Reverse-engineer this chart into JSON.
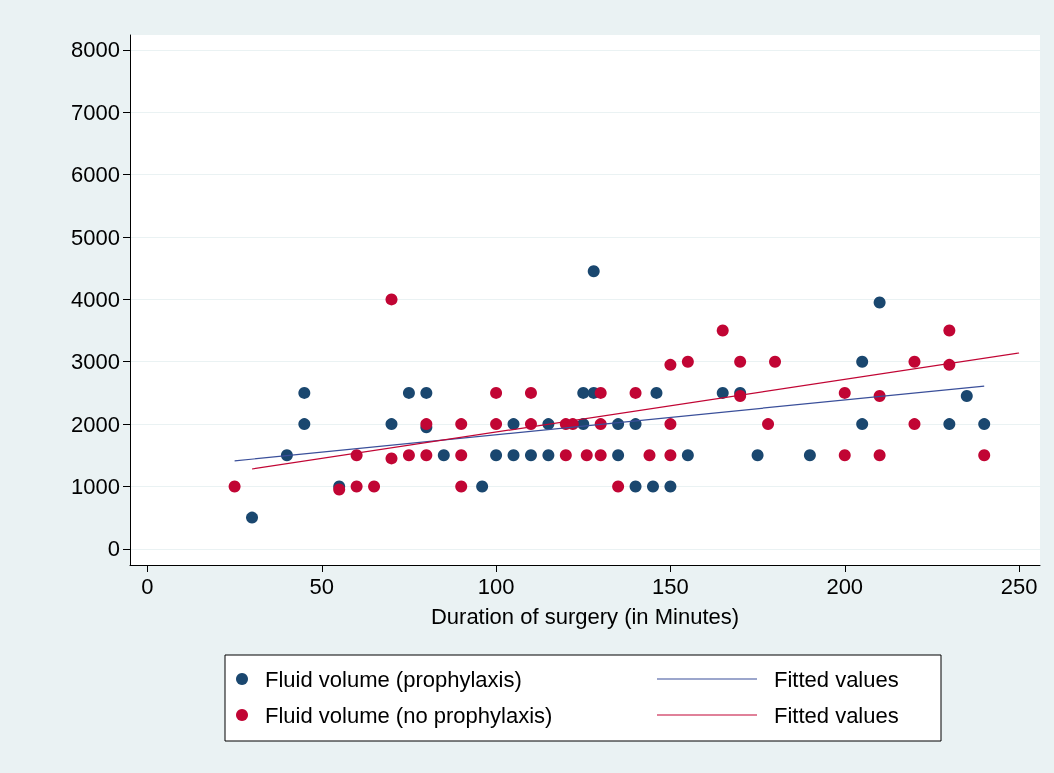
{
  "chart_data": {
    "type": "scatter",
    "xlabel": "Duration of surgery (in Minutes)",
    "xlim": [
      -5,
      256
    ],
    "xticks": [
      0,
      50,
      100,
      150,
      200,
      250
    ],
    "ylim": [
      -260,
      8240
    ],
    "yticks": [
      0,
      1000,
      2000,
      3000,
      4000,
      5000,
      6000,
      7000,
      8000
    ],
    "grid": "y",
    "legend": "bottom",
    "series": [
      {
        "name": "Fluid volume (prophylaxis)",
        "color": "#1a476f",
        "marker": "circle",
        "x": [
          30,
          40,
          45,
          45,
          55,
          70,
          75,
          80,
          80,
          85,
          96,
          100,
          105,
          105,
          110,
          115,
          115,
          125,
          125,
          128,
          128,
          135,
          135,
          140,
          140,
          145,
          146,
          150,
          155,
          165,
          170,
          175,
          190,
          205,
          205,
          210,
          230,
          235,
          240
        ],
        "values": [
          500,
          1500,
          2500,
          2000,
          1000,
          2000,
          2500,
          2500,
          1950,
          1500,
          1000,
          1500,
          1500,
          2000,
          1500,
          1500,
          2000,
          2500,
          2000,
          4450,
          2500,
          2000,
          1500,
          2000,
          1000,
          1000,
          2500,
          1000,
          1500,
          2500,
          2500,
          1500,
          1500,
          3000,
          2000,
          3950,
          2000,
          2450,
          2000
        ]
      },
      {
        "name": "Fluid volume (no prophylaxis)",
        "color": "#c10534",
        "marker": "circle",
        "x": [
          25,
          55,
          60,
          60,
          65,
          70,
          70,
          75,
          80,
          80,
          90,
          90,
          90,
          100,
          100,
          110,
          110,
          120,
          122,
          120,
          126,
          130,
          130,
          130,
          135,
          140,
          144,
          150,
          150,
          150,
          155,
          165,
          170,
          170,
          178,
          180,
          200,
          200,
          210,
          210,
          220,
          220,
          230,
          230,
          240
        ],
        "values": [
          1000,
          950,
          1500,
          1000,
          1000,
          4000,
          1450,
          1500,
          1500,
          2000,
          2000,
          1500,
          1000,
          2500,
          2000,
          2500,
          2000,
          2000,
          2000,
          1500,
          1500,
          2000,
          2500,
          1500,
          1000,
          2500,
          1500,
          1500,
          2000,
          2950,
          3000,
          3500,
          3000,
          2450,
          2000,
          3000,
          2500,
          1500,
          2450,
          1500,
          3000,
          2000,
          3500,
          2950,
          1500
        ]
      },
      {
        "name": "Fitted values",
        "type": "line",
        "marker": "none",
        "color": "#3a4f9a",
        "x": [
          25,
          240
        ],
        "values": [
          1410,
          2610
        ]
      },
      {
        "name": "Fitted values",
        "type": "line",
        "marker": "none",
        "color": "#c10534",
        "x": [
          30,
          250
        ],
        "values": [
          1280,
          3140
        ]
      }
    ]
  }
}
